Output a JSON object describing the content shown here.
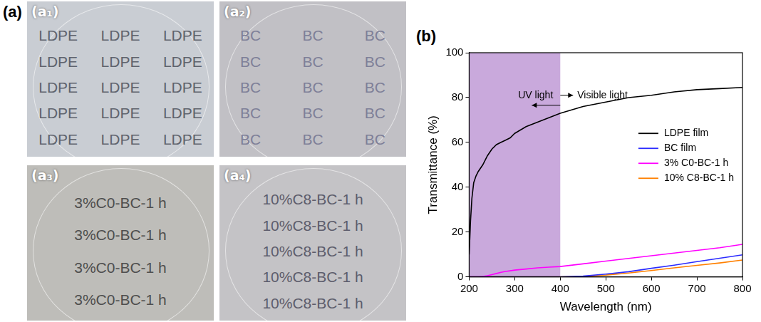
{
  "panel_a": {
    "label": "(a)",
    "photos": [
      {
        "label": "(a₁)",
        "rows": [
          [
            "LDPE",
            "LDPE",
            "LDPE"
          ],
          [
            "LDPE",
            "LDPE",
            "LDPE"
          ],
          [
            "LDPE",
            "LDPE",
            "LDPE"
          ],
          [
            "LDPE",
            "LDPE",
            "LDPE"
          ],
          [
            "LDPE",
            "LDPE",
            "LDPE"
          ]
        ]
      },
      {
        "label": "(a₂)",
        "rows": [
          [
            "BC",
            "BC",
            "BC"
          ],
          [
            "BC",
            "BC",
            "BC"
          ],
          [
            "BC",
            "BC",
            "BC"
          ],
          [
            "BC",
            "BC",
            "BC"
          ],
          [
            "BC",
            "BC",
            "BC"
          ]
        ]
      },
      {
        "label": "(a₃)",
        "rows": [
          [
            "3%C0-BC-1 h"
          ],
          [
            "3%C0-BC-1 h"
          ],
          [
            "3%C0-BC-1 h"
          ],
          [
            "3%C0-BC-1 h"
          ]
        ]
      },
      {
        "label": "(a₄)",
        "rows": [
          [
            "10%C8-BC-1 h"
          ],
          [
            "10%C8-BC-1 h"
          ],
          [
            "10%C8-BC-1 h"
          ],
          [
            "10%C8-BC-1 h"
          ],
          [
            "10%C8-BC-1 h"
          ]
        ]
      }
    ]
  },
  "chart_data": {
    "type": "line",
    "panel_label": "(b)",
    "x_label": "Wavelength (nm)",
    "y_label": "Transmittance (%)",
    "x": [
      200,
      203,
      206,
      210,
      215,
      220,
      230,
      240,
      250,
      260,
      270,
      280,
      290,
      300,
      325,
      350,
      375,
      400,
      450,
      500,
      550,
      600,
      650,
      700,
      750,
      800
    ],
    "series": [
      {
        "name": "LDPE film",
        "color": "#000000",
        "values": [
          10,
          25,
          35,
          42,
          45,
          47,
          50,
          54,
          57,
          59,
          60,
          61,
          62,
          64,
          67,
          69,
          71,
          73,
          76,
          78,
          80,
          81,
          82.5,
          83.5,
          84,
          84.5
        ]
      },
      {
        "name": "BC film",
        "color": "#2b2bff",
        "values": [
          0,
          0,
          0,
          0,
          0,
          0,
          0,
          0,
          0,
          0,
          0,
          0,
          0,
          0,
          0,
          0,
          0,
          0,
          0.3,
          1.2,
          2.3,
          3.8,
          5.2,
          6.8,
          8.3,
          9.8
        ]
      },
      {
        "name": "3% C0-BC-1 h",
        "color": "#ff00ff",
        "values": [
          0,
          0,
          0,
          0,
          0,
          0,
          0.2,
          0.5,
          1,
          1.5,
          2,
          2.4,
          2.7,
          3,
          3.5,
          4,
          4.3,
          4.6,
          5.8,
          7,
          8.2,
          9.4,
          10.6,
          11.8,
          13,
          14.5
        ]
      },
      {
        "name": "10% C8-BC-1 h",
        "color": "#ff8000",
        "values": [
          0,
          0,
          0,
          0,
          0,
          0,
          0,
          0,
          0,
          0,
          0,
          0,
          0,
          0,
          0,
          0,
          0,
          0,
          0.2,
          0.8,
          1.7,
          2.8,
          4,
          5.1,
          6.2,
          7.5
        ]
      }
    ],
    "xlim": [
      200,
      800
    ],
    "xticks": [
      200,
      300,
      400,
      500,
      600,
      700,
      800
    ],
    "ylim": [
      0,
      100
    ],
    "yticks": [
      0,
      20,
      40,
      60,
      80,
      100
    ],
    "shaded_range": [
      200,
      400
    ],
    "shade_color": "#c9a9dc",
    "annotations": [
      "UV light",
      "Visible light"
    ],
    "legend": "right",
    "grid": false
  }
}
